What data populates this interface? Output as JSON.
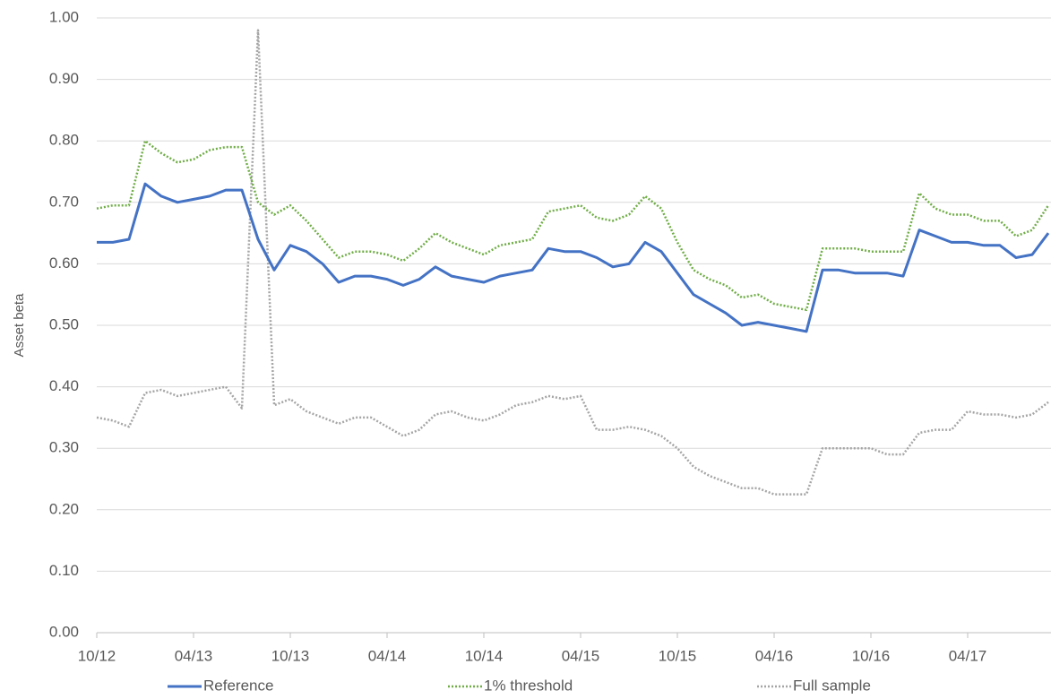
{
  "chart_data": {
    "type": "line",
    "y_label": "Asset beta",
    "categories": [
      "10/12",
      null,
      null,
      null,
      null,
      null,
      "04/13",
      null,
      null,
      null,
      null,
      null,
      "10/13",
      null,
      null,
      null,
      null,
      null,
      "04/14",
      null,
      null,
      null,
      null,
      null,
      "10/14",
      null,
      null,
      null,
      null,
      null,
      "04/15",
      null,
      null,
      null,
      null,
      null,
      "10/15",
      null,
      null,
      null,
      null,
      null,
      "04/16",
      null,
      null,
      null,
      null,
      null,
      "10/16",
      null,
      null,
      null,
      null,
      null,
      "04/17",
      null,
      null,
      null,
      null,
      null
    ],
    "series": [
      {
        "name": "Reference",
        "color": "#4472c4",
        "dash": "solid",
        "values": [
          0.635,
          0.635,
          0.64,
          0.73,
          0.71,
          0.7,
          0.705,
          0.71,
          0.72,
          0.72,
          0.64,
          0.59,
          0.63,
          0.62,
          0.6,
          0.57,
          0.58,
          0.58,
          0.575,
          0.565,
          0.575,
          0.595,
          0.58,
          0.575,
          0.57,
          0.58,
          0.585,
          0.59,
          0.625,
          0.62,
          0.62,
          0.61,
          0.595,
          0.6,
          0.635,
          0.62,
          0.585,
          0.55,
          0.535,
          0.52,
          0.5,
          0.505,
          0.5,
          0.495,
          0.49,
          0.59,
          0.59,
          0.585,
          0.585,
          0.585,
          0.58,
          0.655,
          0.645,
          0.635,
          0.635,
          0.63,
          0.63,
          0.61,
          0.615,
          0.65
        ]
      },
      {
        "name": "1% threshold",
        "color": "#70ad47",
        "dash": "dotted",
        "values": [
          0.69,
          0.695,
          0.695,
          0.8,
          0.78,
          0.765,
          0.77,
          0.785,
          0.79,
          0.79,
          0.7,
          0.68,
          0.695,
          0.67,
          0.64,
          0.61,
          0.62,
          0.62,
          0.615,
          0.605,
          0.625,
          0.65,
          0.635,
          0.625,
          0.615,
          0.63,
          0.635,
          0.64,
          0.685,
          0.69,
          0.695,
          0.675,
          0.67,
          0.68,
          0.71,
          0.69,
          0.635,
          0.59,
          0.575,
          0.565,
          0.545,
          0.55,
          0.535,
          0.53,
          0.525,
          0.625,
          0.625,
          0.625,
          0.62,
          0.62,
          0.62,
          0.715,
          0.69,
          0.68,
          0.68,
          0.67,
          0.67,
          0.645,
          0.655,
          0.695
        ]
      },
      {
        "name": "Full sample",
        "color": "#a5a5a5",
        "dash": "dotted",
        "values": [
          0.35,
          0.345,
          0.335,
          0.39,
          0.395,
          0.385,
          0.39,
          0.395,
          0.4,
          0.365,
          0.98,
          0.37,
          0.38,
          0.36,
          0.35,
          0.34,
          0.35,
          0.35,
          0.335,
          0.32,
          0.33,
          0.355,
          0.36,
          0.35,
          0.345,
          0.355,
          0.37,
          0.375,
          0.385,
          0.38,
          0.385,
          0.33,
          0.33,
          0.335,
          0.33,
          0.32,
          0.3,
          0.27,
          0.255,
          0.245,
          0.235,
          0.235,
          0.225,
          0.225,
          0.225,
          0.3,
          0.3,
          0.3,
          0.3,
          0.29,
          0.29,
          0.325,
          0.33,
          0.33,
          0.36,
          0.355,
          0.355,
          0.35,
          0.355,
          0.375
        ]
      }
    ],
    "ylim": [
      0,
      1
    ],
    "yticks": [
      {
        "value": 0,
        "label": "0.00"
      },
      {
        "value": 0.1,
        "label": "0.10"
      },
      {
        "value": 0.2,
        "label": "0.20"
      },
      {
        "value": 0.3,
        "label": "0.30"
      },
      {
        "value": 0.4,
        "label": "0.40"
      },
      {
        "value": 0.5,
        "label": "0.50"
      },
      {
        "value": 0.6,
        "label": "0.60"
      },
      {
        "value": 0.7,
        "label": "0.70"
      },
      {
        "value": 0.8,
        "label": "0.80"
      },
      {
        "value": 0.9,
        "label": "0.90"
      },
      {
        "value": 1,
        "label": "1.00"
      }
    ],
    "grid": true,
    "legend": "bottom"
  }
}
